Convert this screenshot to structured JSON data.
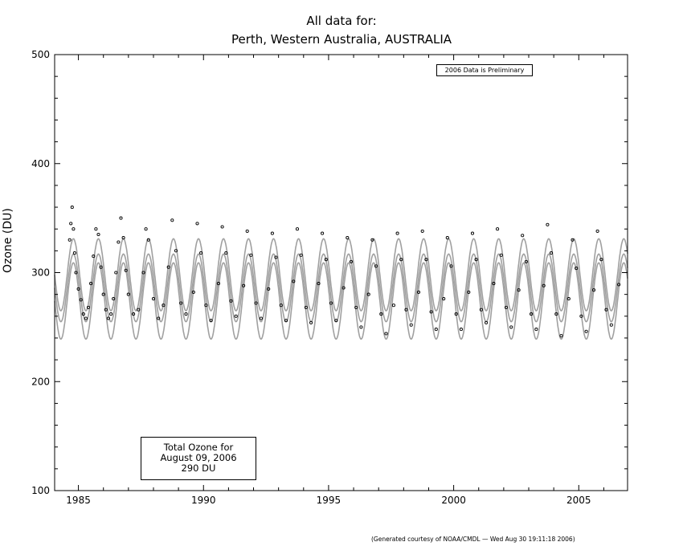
{
  "header": {
    "title_line1": "All data for:",
    "title_line2": "Perth, Western Australia, AUSTRALIA"
  },
  "note": "2006 Data is Preliminary",
  "total_box": {
    "line1": "Total Ozone for",
    "line2": "August 09, 2006",
    "line3": "290 DU"
  },
  "footer": "(Generated courtesy of NOAA/CMDL — Wed Aug 30 19:11:18 2006)",
  "chart_data": {
    "type": "scatter",
    "ylabel": "Ozone (DU)",
    "xlabel": "",
    "xlim": [
      1984.05,
      2006.95
    ],
    "ylim": [
      100,
      500
    ],
    "x_ticks": [
      "1985",
      "1990",
      "1995",
      "2000",
      "2005"
    ],
    "y_ticks": [
      "100",
      "200",
      "300",
      "400",
      "500"
    ],
    "grid": false,
    "colors": {
      "points": "#000000",
      "envelope": "#a0a0a0",
      "axes": "#000000"
    },
    "series": [
      {
        "kind": "points",
        "seasonal_model": {
          "mean_du": 285,
          "amplitude_du": 28,
          "peak_month": "October"
        },
        "x": [
          1984.65,
          1984.7,
          1984.75,
          1984.8,
          1984.85,
          1984.9,
          1985.0,
          1985.1,
          1985.2,
          1985.3,
          1985.4,
          1985.5,
          1985.6,
          1985.7,
          1985.8,
          1985.9,
          1986.0,
          1986.1,
          1986.2,
          1986.3,
          1986.4,
          1986.5,
          1986.6,
          1986.7,
          1986.8,
          1986.9,
          1987.0,
          1987.2,
          1987.4,
          1987.6,
          1987.7,
          1987.8,
          1988.0,
          1988.2,
          1988.4,
          1988.6,
          1988.75,
          1988.9,
          1989.1,
          1989.3,
          1989.6,
          1989.75,
          1989.9,
          1990.1,
          1990.3,
          1990.6,
          1990.75,
          1990.9,
          1991.1,
          1991.3,
          1991.6,
          1991.75,
          1991.9,
          1992.1,
          1992.3,
          1992.6,
          1992.75,
          1992.9,
          1993.1,
          1993.3,
          1993.6,
          1993.75,
          1993.9,
          1994.1,
          1994.3,
          1994.6,
          1994.75,
          1994.9,
          1995.1,
          1995.3,
          1995.6,
          1995.75,
          1995.9,
          1996.1,
          1996.3,
          1996.6,
          1996.75,
          1996.9,
          1997.1,
          1997.3,
          1997.6,
          1997.75,
          1997.9,
          1998.1,
          1998.3,
          1998.6,
          1998.75,
          1998.9,
          1999.1,
          1999.3,
          1999.6,
          1999.75,
          1999.9,
          2000.1,
          2000.3,
          2000.6,
          2000.75,
          2000.9,
          2001.1,
          2001.3,
          2001.6,
          2001.75,
          2001.9,
          2002.1,
          2002.3,
          2002.6,
          2002.75,
          2002.9,
          2003.1,
          2003.3,
          2003.6,
          2003.75,
          2003.9,
          2004.1,
          2004.3,
          2004.6,
          2004.75,
          2004.9,
          2005.1,
          2005.3,
          2005.6,
          2005.75,
          2005.9,
          2006.1,
          2006.3,
          2006.6
        ],
        "y": [
          330,
          345,
          360,
          340,
          318,
          300,
          285,
          275,
          262,
          258,
          268,
          290,
          315,
          340,
          335,
          305,
          280,
          266,
          258,
          262,
          276,
          300,
          328,
          350,
          332,
          302,
          280,
          262,
          266,
          300,
          340,
          330,
          276,
          258,
          270,
          305,
          348,
          320,
          272,
          262,
          282,
          345,
          318,
          270,
          256,
          290,
          342,
          318,
          274,
          260,
          288,
          338,
          316,
          272,
          258,
          285,
          336,
          314,
          270,
          256,
          292,
          340,
          316,
          268,
          254,
          290,
          336,
          312,
          272,
          256,
          286,
          332,
          310,
          268,
          250,
          280,
          330,
          306,
          262,
          244,
          270,
          336,
          312,
          266,
          252,
          282,
          338,
          312,
          264,
          248,
          276,
          332,
          306,
          262,
          248,
          282,
          336,
          312,
          266,
          254,
          290,
          340,
          316,
          268,
          250,
          284,
          334,
          310,
          262,
          248,
          288,
          344,
          318,
          262,
          242,
          276,
          330,
          304,
          260,
          246,
          284,
          338,
          312,
          266,
          252,
          289
        ]
      },
      {
        "kind": "envelope-upper",
        "mean_du": 298,
        "amplitude_du": 33
      },
      {
        "kind": "envelope-mean",
        "mean_du": 286,
        "amplitude_du": 31
      },
      {
        "kind": "envelope-lower",
        "mean_du": 274,
        "amplitude_du": 35
      }
    ]
  }
}
